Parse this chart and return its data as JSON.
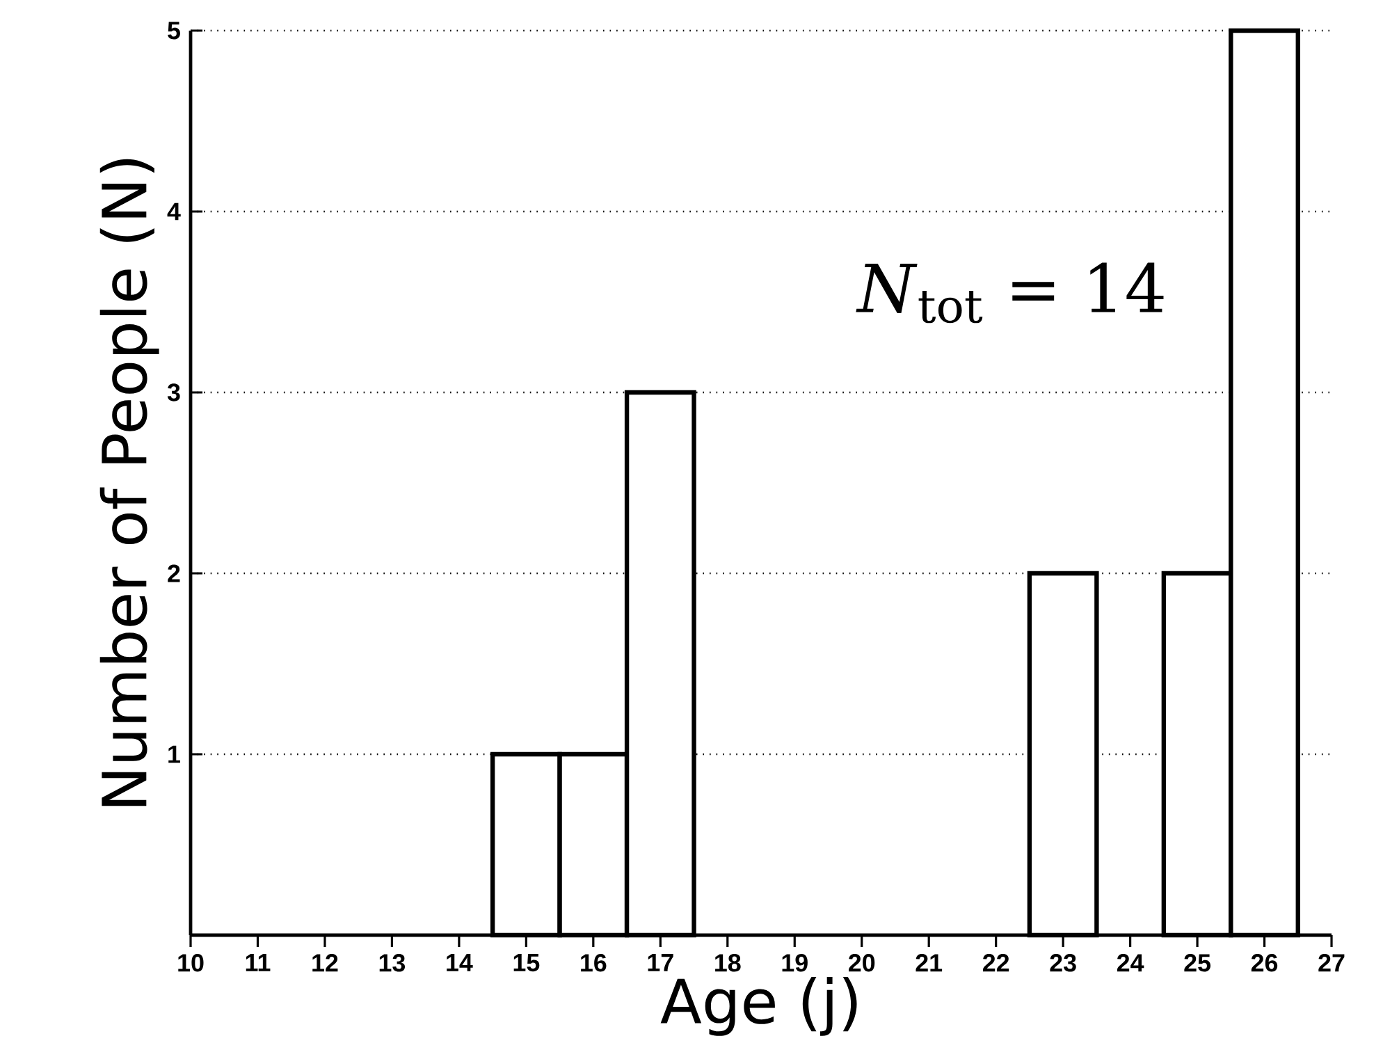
{
  "chart_data": {
    "type": "bar",
    "xlabel": "Age (j)",
    "ylabel": "Number of People (N)",
    "x": [
      15,
      16,
      17,
      23,
      25,
      26
    ],
    "values": [
      1,
      1,
      3,
      2,
      2,
      5
    ],
    "color": "#ffffff",
    "xlim": [
      10,
      27
    ],
    "xticks": [
      10,
      11,
      12,
      13,
      14,
      15,
      16,
      17,
      18,
      19,
      20,
      21,
      22,
      23,
      24,
      25,
      26,
      27
    ],
    "ylim": [
      0,
      5
    ],
    "yticks": [
      1,
      2,
      3,
      4,
      5
    ],
    "grid": "y",
    "annotations": [
      "*N*$_{tot}$ = 14"
    ]
  }
}
